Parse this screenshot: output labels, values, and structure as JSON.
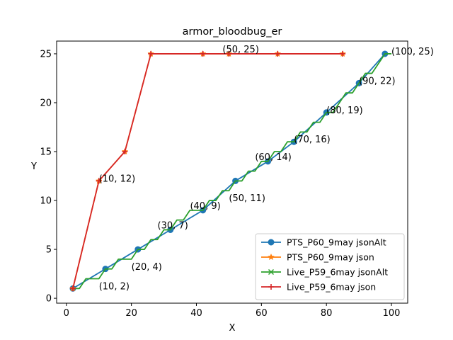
{
  "chart_data": {
    "type": "line",
    "title": "armor_bloodbug_er",
    "xlabel": "X",
    "ylabel": "Y",
    "xlim": [
      -3,
      105
    ],
    "ylim": [
      -0.5,
      26.3
    ],
    "xticks": [
      0,
      20,
      40,
      60,
      80,
      100
    ],
    "yticks": [
      0,
      5,
      10,
      15,
      20,
      25
    ],
    "grid": false,
    "legend_position": "lower right",
    "series": [
      {
        "name": "PTS_P60_9may jsonAlt",
        "color": "#1f77b4",
        "marker": "circle",
        "step": false,
        "points": [
          [
            2,
            1
          ],
          [
            12,
            3
          ],
          [
            22,
            5
          ],
          [
            32,
            7
          ],
          [
            42,
            9
          ],
          [
            52,
            12
          ],
          [
            62,
            14
          ],
          [
            70,
            16
          ],
          [
            80,
            19
          ],
          [
            90,
            22
          ],
          [
            98,
            25
          ]
        ]
      },
      {
        "name": "PTS_P60_9may json",
        "color": "#ff7f0e",
        "marker": "star",
        "step": false,
        "points": [
          [
            2,
            1
          ],
          [
            10,
            12
          ],
          [
            18,
            15
          ],
          [
            26,
            25
          ],
          [
            42,
            25
          ],
          [
            50,
            25
          ],
          [
            65,
            25
          ],
          [
            85,
            25
          ]
        ]
      },
      {
        "name": "Live_P59_6may jsonAlt",
        "color": "#2ca02c",
        "marker": "x",
        "step": true,
        "points": [
          [
            2,
            1
          ],
          [
            4,
            1
          ],
          [
            6,
            2
          ],
          [
            10,
            2
          ],
          [
            12,
            3
          ],
          [
            14,
            3
          ],
          [
            16,
            4
          ],
          [
            20,
            4
          ],
          [
            22,
            5
          ],
          [
            24,
            5
          ],
          [
            26,
            6
          ],
          [
            28,
            6
          ],
          [
            30,
            7
          ],
          [
            32,
            7
          ],
          [
            34,
            8
          ],
          [
            36,
            8
          ],
          [
            38,
            9
          ],
          [
            40,
            9
          ],
          [
            42,
            9
          ],
          [
            44,
            10
          ],
          [
            46,
            10
          ],
          [
            48,
            11
          ],
          [
            50,
            11
          ],
          [
            52,
            12
          ],
          [
            54,
            12
          ],
          [
            56,
            13
          ],
          [
            58,
            13
          ],
          [
            60,
            14
          ],
          [
            62,
            14
          ],
          [
            64,
            15
          ],
          [
            66,
            15
          ],
          [
            68,
            16
          ],
          [
            70,
            16
          ],
          [
            72,
            17
          ],
          [
            74,
            17
          ],
          [
            76,
            18
          ],
          [
            78,
            18
          ],
          [
            80,
            19
          ],
          [
            82,
            19
          ],
          [
            84,
            20
          ],
          [
            86,
            21
          ],
          [
            88,
            21
          ],
          [
            90,
            22
          ],
          [
            92,
            23
          ],
          [
            94,
            23
          ],
          [
            96,
            24
          ],
          [
            98,
            25
          ],
          [
            100,
            25
          ]
        ]
      },
      {
        "name": "Live_P59_6may json",
        "color": "#d62728",
        "marker": "plus",
        "step": false,
        "points": [
          [
            2,
            1
          ],
          [
            10,
            12
          ],
          [
            18,
            15
          ],
          [
            26,
            25
          ],
          [
            42,
            25
          ],
          [
            50,
            25
          ],
          [
            65,
            25
          ],
          [
            85,
            25
          ]
        ]
      }
    ],
    "annotations": [
      {
        "text": "(10, 2)",
        "x": 10,
        "y": 2,
        "anchor": "below"
      },
      {
        "text": "(20, 4)",
        "x": 20,
        "y": 4,
        "anchor": "below"
      },
      {
        "text": "(30, 7)",
        "x": 30,
        "y": 7,
        "anchor": "above"
      },
      {
        "text": "(40, 9)",
        "x": 40,
        "y": 9,
        "anchor": "above"
      },
      {
        "text": "(50, 11)",
        "x": 50,
        "y": 11,
        "anchor": "below"
      },
      {
        "text": "(60, 14)",
        "x": 60,
        "y": 14,
        "anchor": "above"
      },
      {
        "text": "(70, 16)",
        "x": 70,
        "y": 16,
        "anchor": "right"
      },
      {
        "text": "(80, 19)",
        "x": 80,
        "y": 19,
        "anchor": "right"
      },
      {
        "text": "(90, 22)",
        "x": 90,
        "y": 22,
        "anchor": "right"
      },
      {
        "text": "(100, 25)",
        "x": 100,
        "y": 25,
        "anchor": "right"
      },
      {
        "text": "(10, 12)",
        "x": 10,
        "y": 12,
        "anchor": "right"
      },
      {
        "text": "(50, 25)",
        "x": 50,
        "y": 25,
        "anchor": "above"
      }
    ]
  }
}
